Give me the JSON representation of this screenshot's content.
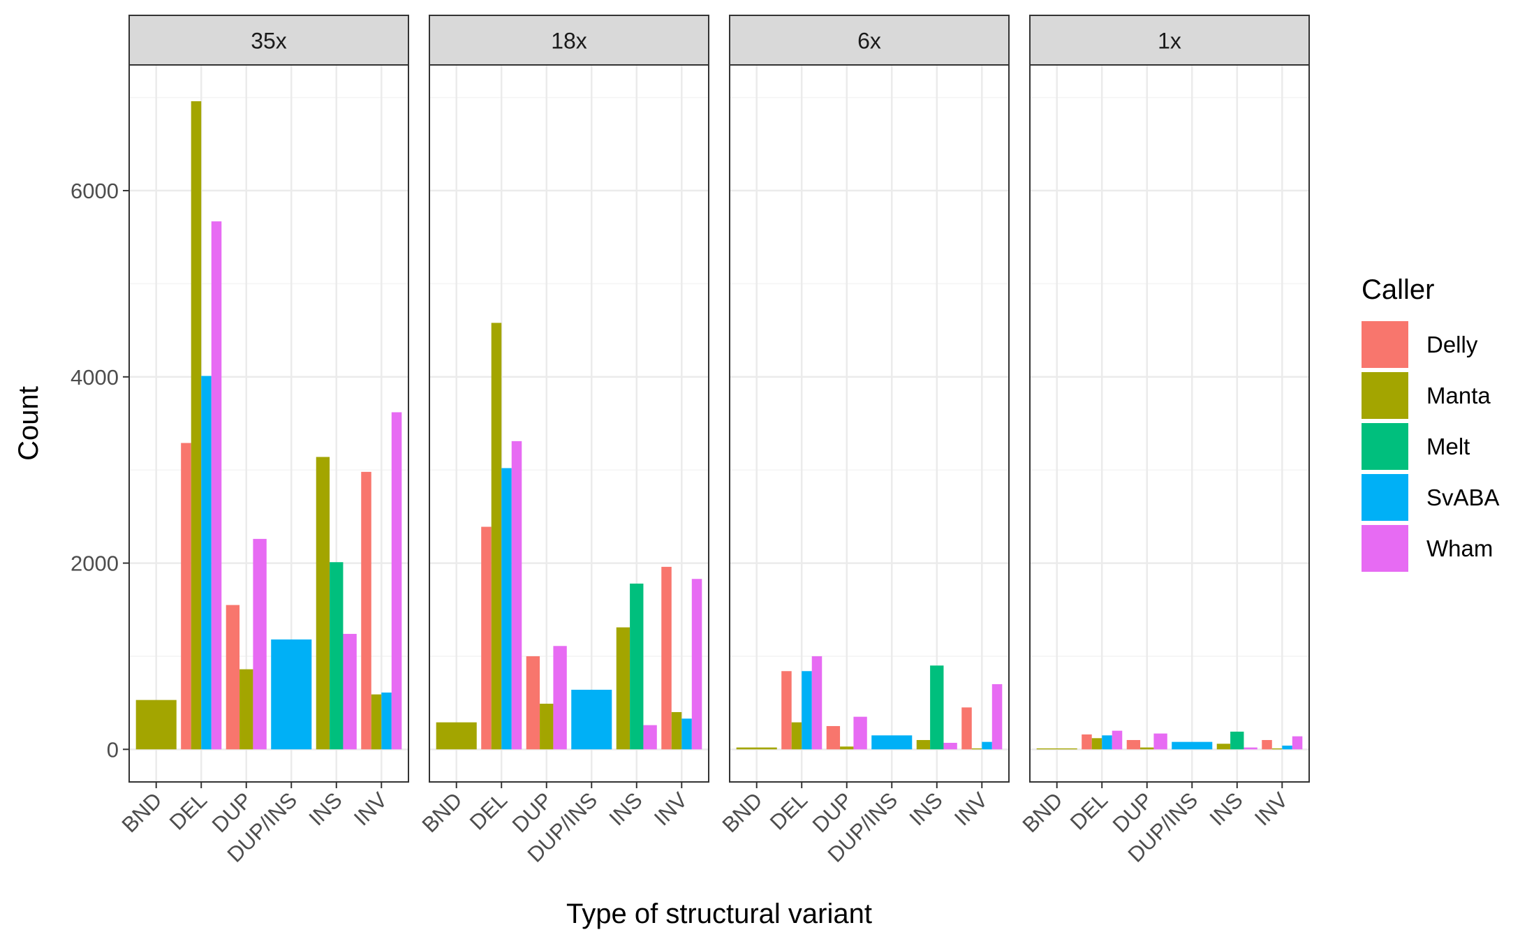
{
  "chart_data": {
    "type": "bar",
    "xlabel": "Type of structural variant",
    "ylabel": "Count",
    "ylim": [
      -350,
      7350
    ],
    "yticks": [
      0,
      2000,
      4000,
      6000
    ],
    "grid": true,
    "legend": {
      "title": "Caller",
      "placement": "right",
      "entries": [
        {
          "name": "Delly",
          "color": "#F8766D"
        },
        {
          "name": "Manta",
          "color": "#A3A500"
        },
        {
          "name": "Melt",
          "color": "#00BF7D"
        },
        {
          "name": "SvABA",
          "color": "#00B0F6"
        },
        {
          "name": "Wham",
          "color": "#E76BF3"
        }
      ]
    },
    "categories": [
      "BND",
      "DEL",
      "DUP",
      "DUP/INS",
      "INS",
      "INV"
    ],
    "facets": [
      {
        "label": "35x",
        "bars": [
          {
            "category": "BND",
            "caller": "Manta",
            "value": 530
          },
          {
            "category": "DEL",
            "caller": "Delly",
            "value": 3290
          },
          {
            "category": "DEL",
            "caller": "Manta",
            "value": 6960
          },
          {
            "category": "DEL",
            "caller": "SvABA",
            "value": 4010
          },
          {
            "category": "DEL",
            "caller": "Wham",
            "value": 5670
          },
          {
            "category": "DUP",
            "caller": "Delly",
            "value": 1550
          },
          {
            "category": "DUP",
            "caller": "Manta",
            "value": 860
          },
          {
            "category": "DUP",
            "caller": "Wham",
            "value": 2260
          },
          {
            "category": "DUP/INS",
            "caller": "SvABA",
            "value": 1180
          },
          {
            "category": "INS",
            "caller": "Manta",
            "value": 3140
          },
          {
            "category": "INS",
            "caller": "Melt",
            "value": 2010
          },
          {
            "category": "INS",
            "caller": "Wham",
            "value": 1240
          },
          {
            "category": "INV",
            "caller": "Delly",
            "value": 2980
          },
          {
            "category": "INV",
            "caller": "Manta",
            "value": 590
          },
          {
            "category": "INV",
            "caller": "SvABA",
            "value": 610
          },
          {
            "category": "INV",
            "caller": "Wham",
            "value": 3620
          }
        ]
      },
      {
        "label": "18x",
        "bars": [
          {
            "category": "BND",
            "caller": "Manta",
            "value": 290
          },
          {
            "category": "DEL",
            "caller": "Delly",
            "value": 2390
          },
          {
            "category": "DEL",
            "caller": "Manta",
            "value": 4580
          },
          {
            "category": "DEL",
            "caller": "SvABA",
            "value": 3020
          },
          {
            "category": "DEL",
            "caller": "Wham",
            "value": 3310
          },
          {
            "category": "DUP",
            "caller": "Delly",
            "value": 1000
          },
          {
            "category": "DUP",
            "caller": "Manta",
            "value": 490
          },
          {
            "category": "DUP",
            "caller": "Wham",
            "value": 1110
          },
          {
            "category": "DUP/INS",
            "caller": "SvABA",
            "value": 640
          },
          {
            "category": "INS",
            "caller": "Manta",
            "value": 1310
          },
          {
            "category": "INS",
            "caller": "Melt",
            "value": 1780
          },
          {
            "category": "INS",
            "caller": "Wham",
            "value": 260
          },
          {
            "category": "INV",
            "caller": "Delly",
            "value": 1960
          },
          {
            "category": "INV",
            "caller": "Manta",
            "value": 400
          },
          {
            "category": "INV",
            "caller": "SvABA",
            "value": 330
          },
          {
            "category": "INV",
            "caller": "Wham",
            "value": 1830
          }
        ]
      },
      {
        "label": "6x",
        "bars": [
          {
            "category": "BND",
            "caller": "Manta",
            "value": 20
          },
          {
            "category": "DEL",
            "caller": "Delly",
            "value": 840
          },
          {
            "category": "DEL",
            "caller": "Manta",
            "value": 290
          },
          {
            "category": "DEL",
            "caller": "SvABA",
            "value": 840
          },
          {
            "category": "DEL",
            "caller": "Wham",
            "value": 1000
          },
          {
            "category": "DUP",
            "caller": "Delly",
            "value": 250
          },
          {
            "category": "DUP",
            "caller": "Manta",
            "value": 30
          },
          {
            "category": "DUP",
            "caller": "Wham",
            "value": 350
          },
          {
            "category": "DUP/INS",
            "caller": "SvABA",
            "value": 150
          },
          {
            "category": "INS",
            "caller": "Manta",
            "value": 100
          },
          {
            "category": "INS",
            "caller": "Melt",
            "value": 900
          },
          {
            "category": "INS",
            "caller": "Wham",
            "value": 70
          },
          {
            "category": "INV",
            "caller": "Delly",
            "value": 450
          },
          {
            "category": "INV",
            "caller": "Manta",
            "value": 10
          },
          {
            "category": "INV",
            "caller": "SvABA",
            "value": 80
          },
          {
            "category": "INV",
            "caller": "Wham",
            "value": 700
          }
        ]
      },
      {
        "label": "1x",
        "bars": [
          {
            "category": "BND",
            "caller": "Manta",
            "value": 10
          },
          {
            "category": "DEL",
            "caller": "Delly",
            "value": 160
          },
          {
            "category": "DEL",
            "caller": "Manta",
            "value": 120
          },
          {
            "category": "DEL",
            "caller": "SvABA",
            "value": 150
          },
          {
            "category": "DEL",
            "caller": "Wham",
            "value": 200
          },
          {
            "category": "DUP",
            "caller": "Delly",
            "value": 100
          },
          {
            "category": "DUP",
            "caller": "Manta",
            "value": 20
          },
          {
            "category": "DUP",
            "caller": "Wham",
            "value": 170
          },
          {
            "category": "DUP/INS",
            "caller": "SvABA",
            "value": 80
          },
          {
            "category": "INS",
            "caller": "Manta",
            "value": 60
          },
          {
            "category": "INS",
            "caller": "Melt",
            "value": 190
          },
          {
            "category": "INS",
            "caller": "Wham",
            "value": 20
          },
          {
            "category": "INV",
            "caller": "Delly",
            "value": 100
          },
          {
            "category": "INV",
            "caller": "Manta",
            "value": 10
          },
          {
            "category": "INV",
            "caller": "SvABA",
            "value": 40
          },
          {
            "category": "INV",
            "caller": "Wham",
            "value": 140
          }
        ]
      }
    ]
  }
}
